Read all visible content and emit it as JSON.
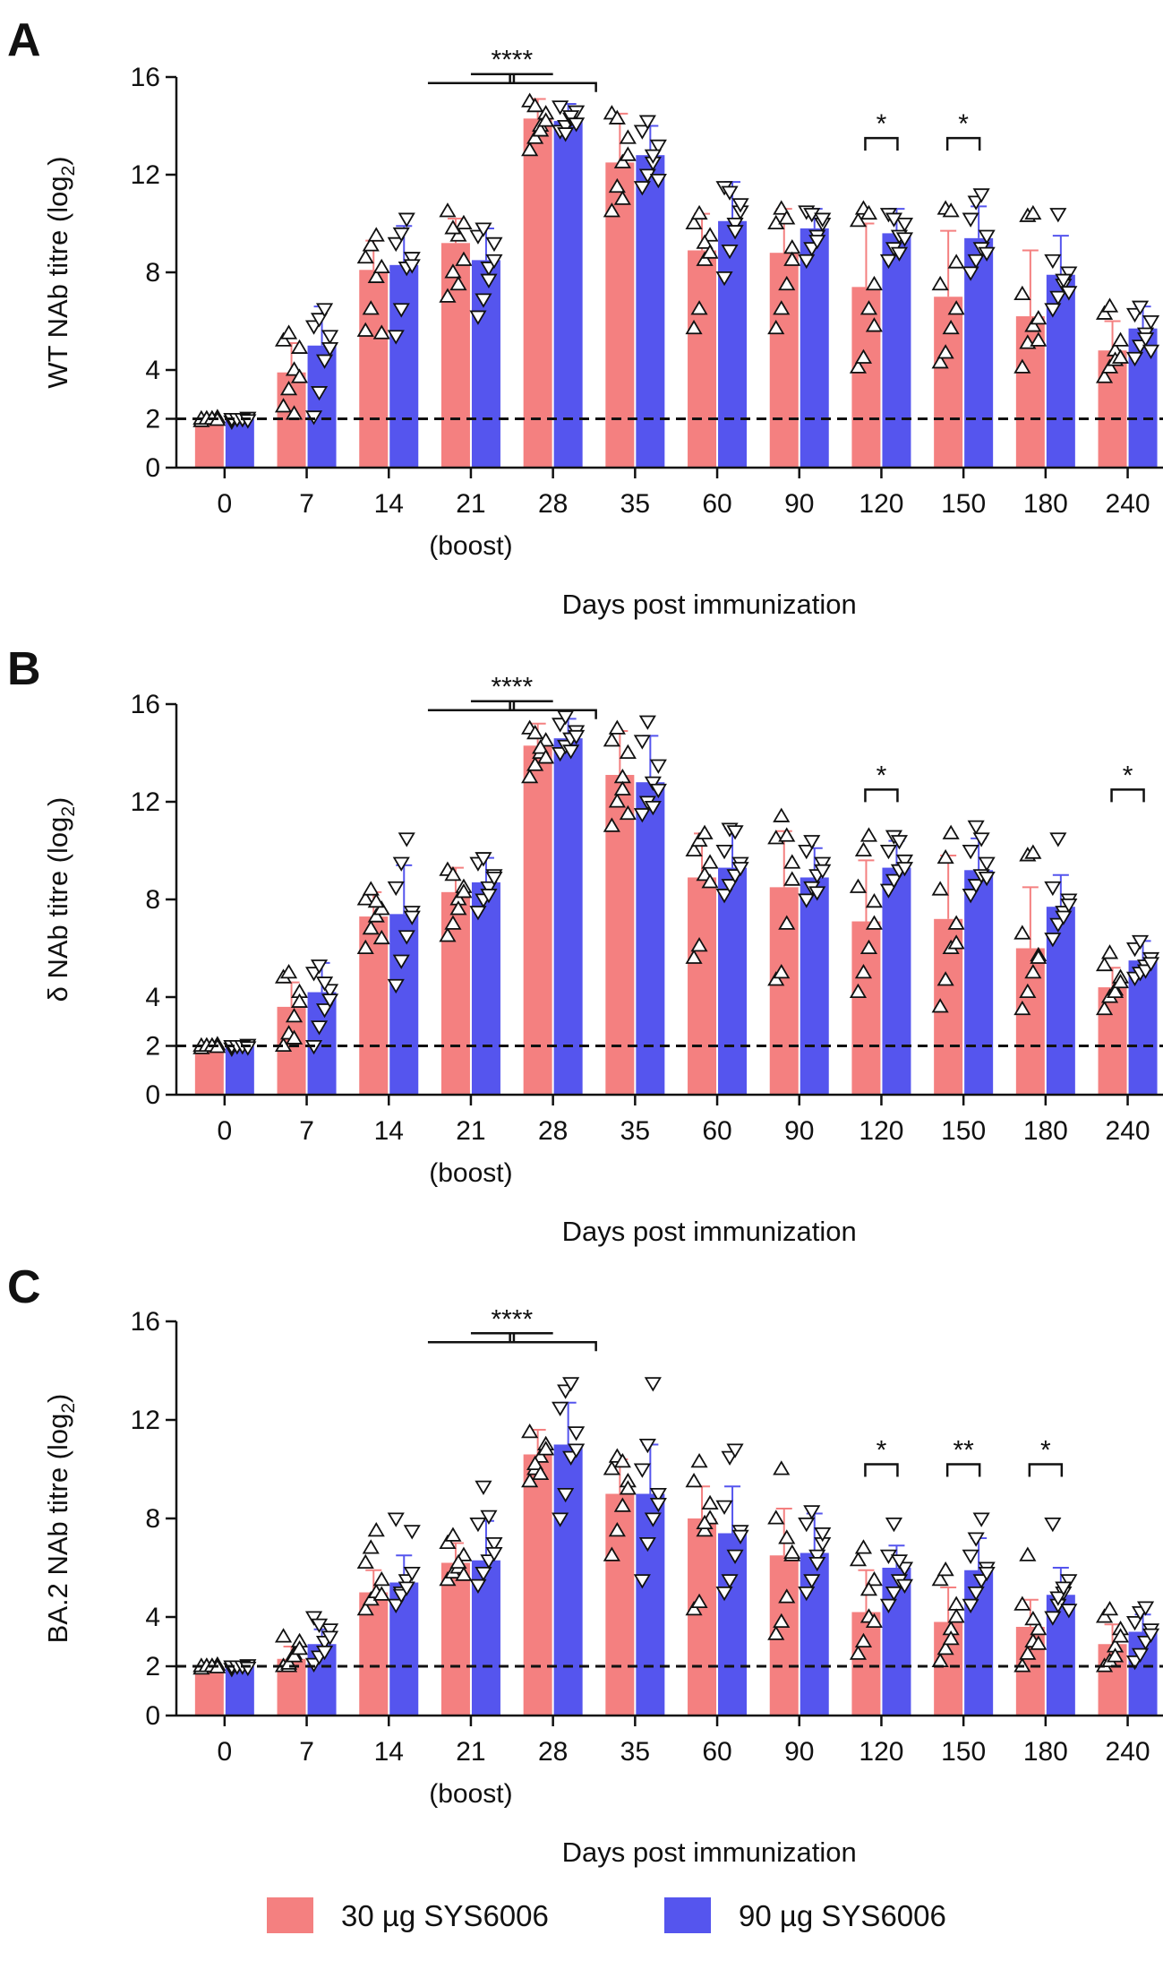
{
  "legend": {
    "items": [
      {
        "label": "30 µg SYS6006",
        "color": "#f48080"
      },
      {
        "label": "90 µg SYS6006",
        "color": "#5555ee"
      }
    ]
  },
  "chart_data": [
    {
      "panel": "A",
      "type": "bar",
      "ylabel": "WT NAb titre (log2)",
      "ylabel_main": "WT NAb titre (log",
      "ylabel_sub": "2",
      "ylabel_close": ")",
      "xlabel": "Days post immunization",
      "boost_label": "(boost)",
      "boost_category": "21",
      "ylim": [
        0,
        16
      ],
      "yticks": [
        "0",
        "2",
        "4",
        "8",
        "12",
        "16"
      ],
      "threshold": 2,
      "categories": [
        "0",
        "7",
        "14",
        "21",
        "28",
        "35",
        "60",
        "90",
        "120",
        "150",
        "180",
        "240"
      ],
      "series": [
        {
          "name": "30 µg SYS6006",
          "values": [
            2.0,
            3.9,
            8.1,
            9.2,
            14.3,
            12.5,
            8.9,
            8.8,
            7.4,
            7.0,
            6.2,
            4.8
          ],
          "errors": [
            0.0,
            1.2,
            1.2,
            1.0,
            0.8,
            2.0,
            1.5,
            1.8,
            2.6,
            2.7,
            2.7,
            1.2
          ]
        },
        {
          "name": "90 µg SYS6006",
          "values": [
            2.0,
            5.0,
            8.3,
            8.5,
            14.2,
            12.8,
            10.1,
            9.8,
            9.6,
            9.4,
            7.9,
            5.7
          ],
          "errors": [
            0.0,
            1.6,
            1.6,
            1.3,
            0.7,
            1.2,
            1.6,
            0.8,
            1.0,
            1.3,
            1.6,
            0.9
          ]
        }
      ],
      "points": [
        [
          [
            1.9,
            2,
            2,
            2.05,
            2,
            2,
            2,
            1.95
          ],
          [
            2.5,
            3.2,
            4,
            4.9,
            5.2,
            5.5,
            2.2,
            3.7
          ],
          [
            5.6,
            6.5,
            7.8,
            8.2,
            8.6,
            9.1,
            9.5,
            5.5
          ],
          [
            7,
            8,
            9.5,
            10,
            10.5,
            9.8,
            7.5,
            8.5
          ],
          [
            13,
            13.5,
            14,
            14.5,
            15,
            14.8,
            13.8,
            14.2
          ],
          [
            10.5,
            11.5,
            12.5,
            13.5,
            14.5,
            14.3,
            11,
            12.8
          ],
          [
            5.7,
            6.5,
            8.5,
            9.5,
            10,
            10.4,
            9.2,
            8.8
          ],
          [
            5.7,
            6.5,
            7.5,
            9,
            10,
            10.6,
            10.2,
            8.5
          ],
          [
            4.1,
            4.5,
            6.5,
            7.5,
            10.1,
            10.6,
            10.4,
            5.8
          ],
          [
            4.3,
            4.7,
            5.7,
            6.5,
            7.5,
            10.6,
            10.5,
            8.4
          ],
          [
            4.1,
            5.1,
            5.8,
            6.1,
            7.1,
            10.3,
            10.4,
            5.2
          ],
          [
            3.7,
            4.1,
            4.8,
            5.2,
            6.3,
            6.6,
            4.4,
            4.5
          ]
        ],
        [
          [
            1.9,
            2,
            2,
            2.05,
            2,
            2,
            2,
            1.95
          ],
          [
            2.1,
            3.1,
            4.4,
            5.4,
            5.8,
            6.1,
            6.5,
            4.9
          ],
          [
            5.4,
            6.5,
            8.2,
            8.6,
            9.2,
            9.6,
            10.2,
            8.3
          ],
          [
            6.2,
            6.9,
            8.2,
            8.5,
            9.5,
            9.8,
            7.7,
            9.2
          ],
          [
            13.8,
            14,
            14.3,
            14.6,
            14.8,
            13.7,
            14.4,
            14.1
          ],
          [
            11.5,
            12,
            12.5,
            13.2,
            13.8,
            14.2,
            12.8,
            11.8
          ],
          [
            7.8,
            8.9,
            10,
            10.5,
            11.5,
            11.3,
            9.7,
            10.8
          ],
          [
            8.5,
            9,
            9.5,
            10,
            10.5,
            10.4,
            9.3,
            10.2
          ],
          [
            8.5,
            9,
            9.5,
            10,
            10.4,
            10.2,
            8.8,
            9.4
          ],
          [
            8,
            8.5,
            9,
            9.5,
            10.2,
            10.9,
            11.2,
            8.8
          ],
          [
            6.5,
            7,
            7.5,
            8,
            8.5,
            10.4,
            7.7,
            7.2
          ],
          [
            4.5,
            5,
            5.5,
            6,
            6.3,
            6.6,
            5.3,
            4.8
          ]
        ]
      ],
      "significance": [
        {
          "label": "****",
          "from": "21",
          "to": "28",
          "type": "grouped",
          "y": 15.9
        },
        {
          "label": "*",
          "category": "120",
          "type": "pair",
          "y": 13.5
        },
        {
          "label": "*",
          "category": "150",
          "type": "pair",
          "y": 13.5
        }
      ]
    },
    {
      "panel": "B",
      "type": "bar",
      "ylabel": "δ NAb titre (log2)",
      "ylabel_main": "δ  NAb titre (log",
      "ylabel_sub": "2",
      "ylabel_close": ")",
      "xlabel": "Days post immunization",
      "boost_label": "(boost)",
      "boost_category": "21",
      "ylim": [
        0,
        16
      ],
      "yticks": [
        "0",
        "2",
        "4",
        "8",
        "12",
        "16"
      ],
      "threshold": 2,
      "categories": [
        "0",
        "7",
        "14",
        "21",
        "28",
        "35",
        "60",
        "90",
        "120",
        "150",
        "180",
        "240"
      ],
      "series": [
        {
          "name": "30 µg SYS6006",
          "values": [
            2.0,
            3.6,
            7.3,
            8.3,
            14.3,
            13.1,
            8.9,
            8.5,
            7.1,
            7.2,
            6.0,
            4.4
          ],
          "errors": [
            0.0,
            1.0,
            1.0,
            1.0,
            0.9,
            1.8,
            1.8,
            2.3,
            2.5,
            2.6,
            2.5,
            0.8
          ]
        },
        {
          "name": "90 µg SYS6006",
          "values": [
            2.0,
            4.2,
            7.4,
            8.7,
            14.6,
            12.8,
            9.3,
            8.9,
            9.3,
            9.2,
            7.7,
            5.5
          ],
          "errors": [
            0.0,
            1.2,
            2.0,
            1.0,
            0.8,
            1.9,
            1.6,
            1.2,
            1.1,
            1.3,
            1.3,
            0.8
          ]
        }
      ],
      "points": [
        [
          [
            1.9,
            2,
            2,
            2.05,
            2,
            2,
            2,
            1.95
          ],
          [
            2,
            2.5,
            3.2,
            4.2,
            4.8,
            5,
            2.3,
            3.8
          ],
          [
            6,
            6.8,
            7.3,
            7.6,
            8,
            8.4,
            7.9,
            6.4
          ],
          [
            6.5,
            7,
            8,
            8.5,
            9.2,
            9,
            7.6,
            8.3
          ],
          [
            13,
            13.5,
            14,
            14.5,
            15,
            14.8,
            14.2,
            13.8
          ],
          [
            11,
            12,
            13,
            14,
            14.5,
            15,
            12.5,
            11.5
          ],
          [
            5.6,
            6.1,
            9,
            9.5,
            10,
            10.4,
            10.7,
            8.7
          ],
          [
            4.7,
            5,
            7,
            9.5,
            10.5,
            11.4,
            10.6,
            8.8
          ],
          [
            4.2,
            5,
            6,
            7,
            8.5,
            10,
            10.6,
            7.9
          ],
          [
            3.6,
            4.7,
            6,
            7,
            8.4,
            9.7,
            10.7,
            6.2
          ],
          [
            3.5,
            4.2,
            5,
            5.7,
            6.6,
            9.8,
            9.9,
            5.6
          ],
          [
            3.5,
            4,
            4.3,
            4.8,
            5.3,
            5.8,
            4.2,
            4.6
          ]
        ],
        [
          [
            1.9,
            2,
            2,
            2.05,
            2,
            2,
            2,
            1.95
          ],
          [
            2,
            2.8,
            3.5,
            4.3,
            5,
            5.3,
            4.6,
            3.9
          ],
          [
            4.5,
            5.5,
            6.5,
            7.5,
            8.5,
            9.5,
            10.5,
            7.3
          ],
          [
            7.5,
            8,
            8.5,
            9,
            9.5,
            9.7,
            8.2,
            8.9
          ],
          [
            14,
            14.3,
            14.6,
            14.9,
            15.2,
            15.5,
            14.1,
            14.7
          ],
          [
            11.5,
            12,
            12.8,
            13.5,
            14.5,
            15.3,
            11.8,
            12.5
          ],
          [
            8.2,
            8.6,
            9,
            9.5,
            10,
            10.9,
            10.8,
            9.3
          ],
          [
            8,
            8.5,
            9,
            9.5,
            10,
            10.4,
            8.3,
            9.2
          ],
          [
            8.4,
            8.8,
            9.2,
            9.6,
            10,
            10.6,
            10.4,
            9.3
          ],
          [
            8.2,
            8.6,
            9,
            9.5,
            10,
            11,
            10.5,
            8.9
          ],
          [
            6.4,
            7,
            7.5,
            8,
            8.5,
            10.5,
            7.3,
            7.8
          ],
          [
            4.8,
            5,
            5.3,
            5.6,
            6,
            6.3,
            5.1,
            5.4
          ]
        ]
      ],
      "significance": [
        {
          "label": "****",
          "from": "21",
          "to": "28",
          "type": "grouped",
          "y": 15.9
        },
        {
          "label": "*",
          "category": "120",
          "type": "pair",
          "y": 12.5
        },
        {
          "label": "*",
          "category": "240",
          "type": "pair",
          "y": 12.5
        }
      ]
    },
    {
      "panel": "C",
      "type": "bar",
      "ylabel": "BA.2 NAb titre (log2)",
      "ylabel_main": "BA.2 NAb titre (log",
      "ylabel_sub": "2",
      "ylabel_close": ")",
      "xlabel": "Days post immunization",
      "boost_label": "(boost)",
      "boost_category": "21",
      "ylim": [
        0,
        16
      ],
      "yticks": [
        "0",
        "2",
        "4",
        "8",
        "12",
        "16"
      ],
      "threshold": 2,
      "categories": [
        "0",
        "7",
        "14",
        "21",
        "28",
        "35",
        "60",
        "90",
        "120",
        "150",
        "180",
        "240"
      ],
      "series": [
        {
          "name": "30 µg SYS6006",
          "values": [
            2.0,
            2.3,
            5.0,
            6.2,
            10.6,
            9.0,
            8.0,
            6.5,
            4.2,
            3.8,
            3.6,
            2.9
          ],
          "errors": [
            0.0,
            0.5,
            0.9,
            0.8,
            1.0,
            1.4,
            1.3,
            1.9,
            1.7,
            1.4,
            1.1,
            0.8
          ]
        },
        {
          "name": "90 µg SYS6006",
          "values": [
            2.0,
            2.9,
            5.4,
            6.3,
            11.0,
            9.0,
            7.4,
            6.6,
            6.0,
            5.9,
            4.9,
            3.4
          ],
          "errors": [
            0.0,
            0.6,
            1.1,
            1.6,
            1.7,
            2.0,
            1.9,
            1.6,
            0.9,
            1.3,
            1.1,
            0.7
          ]
        }
      ],
      "points": [
        [
          [
            1.9,
            2,
            2,
            2.05,
            2,
            2,
            2,
            1.95
          ],
          [
            2,
            2,
            2.5,
            3,
            3.2,
            2.1,
            2.4,
            2.7
          ],
          [
            4.3,
            4.7,
            5,
            5.5,
            6.2,
            6.8,
            7.5,
            4.9
          ],
          [
            5.5,
            5.8,
            6,
            6.5,
            7,
            7.3,
            6.2,
            5.7
          ],
          [
            9.5,
            10,
            10.5,
            11,
            11.5,
            10.2,
            9.8,
            10.8
          ],
          [
            6.5,
            7.5,
            8.5,
            9.5,
            10,
            10.5,
            10.3,
            9.2
          ],
          [
            4.3,
            4.6,
            7.5,
            8,
            9.5,
            10.3,
            7.8,
            8.6
          ],
          [
            3.3,
            3.8,
            4.8,
            6.5,
            8,
            10,
            7.2,
            6.6
          ],
          [
            2.5,
            3,
            4,
            5.5,
            6.3,
            6.8,
            5.1,
            3.8
          ],
          [
            2.2,
            2.7,
            3.5,
            4.5,
            5.5,
            5.9,
            3.1,
            4
          ],
          [
            2,
            2.5,
            3,
            3.5,
            4.5,
            6.5,
            3.9,
            2.9
          ],
          [
            2,
            2.2,
            2.8,
            3.5,
            4,
            4.3,
            2.4,
            3.2
          ]
        ],
        [
          [
            1.9,
            2,
            2,
            2.05,
            2,
            2,
            2,
            1.95
          ],
          [
            2.1,
            2.4,
            3,
            3.5,
            4,
            3.7,
            2.6,
            3.2
          ],
          [
            4.5,
            5,
            5.5,
            7.5,
            8,
            4.9,
            5.2,
            5.8
          ],
          [
            5.3,
            5.8,
            6.3,
            7,
            7.8,
            9.3,
            8.1,
            6.6
          ],
          [
            8,
            9,
            10.5,
            11.5,
            12.5,
            13.2,
            13.5,
            10.8
          ],
          [
            5.5,
            7,
            8,
            9,
            10,
            11,
            13.5,
            8.6
          ],
          [
            5,
            5.5,
            6.5,
            7.5,
            8.5,
            10.5,
            10.8,
            7.3
          ],
          [
            5,
            5.5,
            6.5,
            7,
            7.8,
            8.3,
            6.2,
            7.4
          ],
          [
            4.5,
            5,
            5.5,
            6,
            6.5,
            7.8,
            6.3,
            5.3
          ],
          [
            4.5,
            5,
            5.5,
            6,
            6.5,
            7.2,
            8,
            5.8
          ],
          [
            4,
            4.5,
            5,
            5.5,
            7.8,
            4.8,
            5.2,
            4.3
          ],
          [
            2.2,
            2.5,
            3,
            3.5,
            3.8,
            4.2,
            4.4,
            3.3
          ]
        ]
      ],
      "significance": [
        {
          "label": "****",
          "from": "21",
          "to": "28",
          "type": "grouped",
          "y": 15.3
        },
        {
          "label": "*",
          "category": "120",
          "type": "pair",
          "y": 10.2
        },
        {
          "label": "**",
          "category": "150",
          "type": "pair",
          "y": 10.2
        },
        {
          "label": "*",
          "category": "180",
          "type": "pair",
          "y": 10.2
        }
      ]
    }
  ]
}
